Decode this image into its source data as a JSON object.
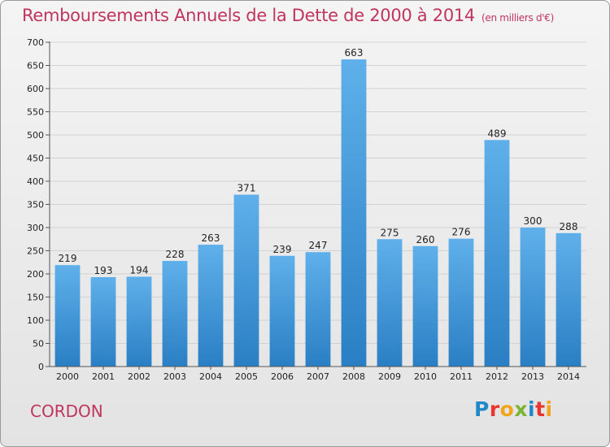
{
  "title": "Remboursements Annuels de la Dette de 2000 à 2014",
  "subtitle": "(en milliers d'€)",
  "commune": "CORDON",
  "logo": {
    "letters": [
      "P",
      "r",
      "o",
      "x",
      "i",
      "t",
      "i"
    ],
    "colors": [
      "#1f88c9",
      "#e8362e",
      "#f2a51c",
      "#7ab433",
      "#1f88c9",
      "#e8362e",
      "#f2a51c"
    ]
  },
  "chart_data": {
    "type": "bar",
    "title": "Remboursements Annuels de la Dette de 2000 à 2014",
    "xlabel": "",
    "ylabel": "",
    "categories": [
      "2000",
      "2001",
      "2002",
      "2003",
      "2004",
      "2005",
      "2006",
      "2007",
      "2008",
      "2009",
      "2010",
      "2011",
      "2012",
      "2013",
      "2014"
    ],
    "values": [
      219,
      193,
      194,
      228,
      263,
      371,
      239,
      247,
      663,
      275,
      260,
      276,
      489,
      300,
      288
    ],
    "ylim": [
      0,
      700
    ],
    "yticks": [
      0,
      50,
      100,
      150,
      200,
      250,
      300,
      350,
      400,
      450,
      500,
      550,
      600,
      650,
      700
    ],
    "grid": true,
    "bar_color": "#4a9fdf"
  }
}
